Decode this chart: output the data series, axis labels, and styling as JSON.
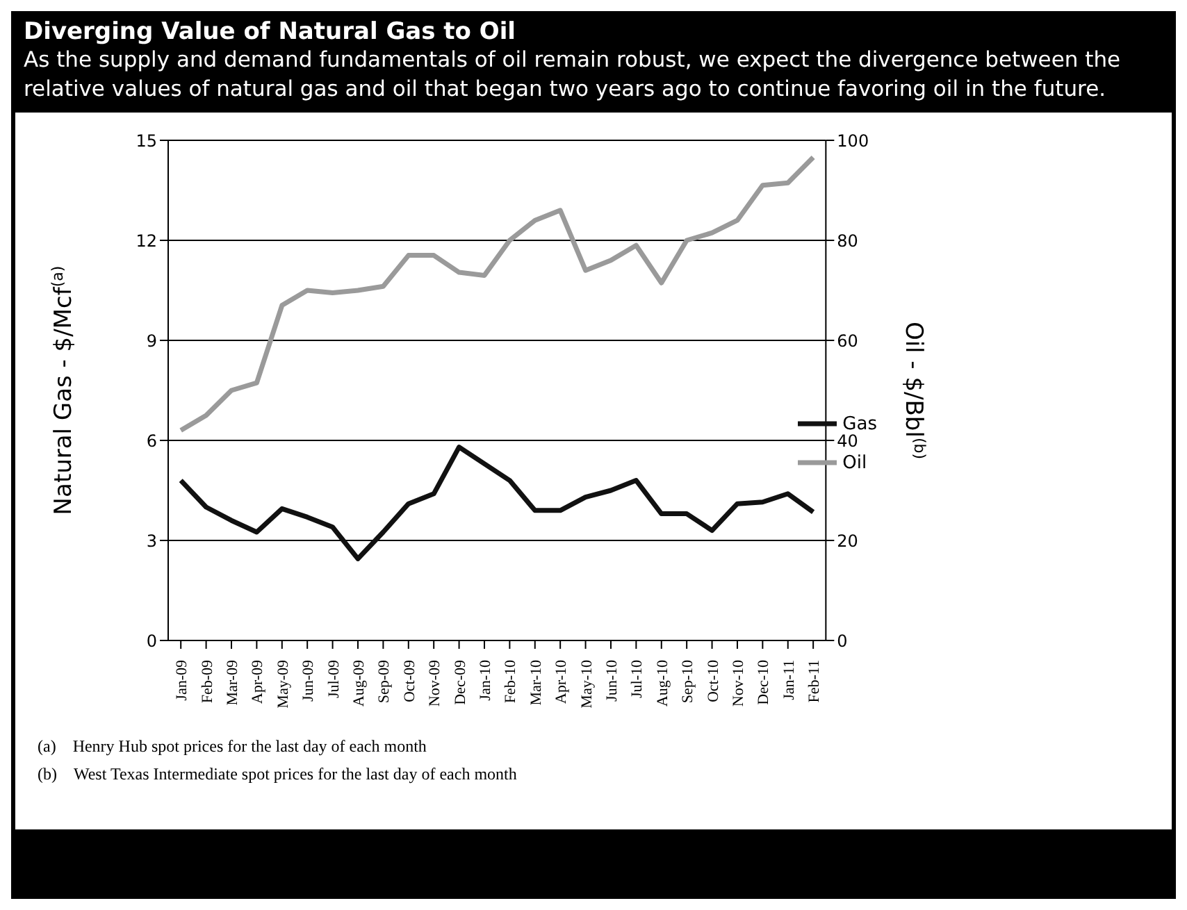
{
  "chart_data": {
    "type": "line",
    "title": "Diverging Value of Natural Gas to Oil",
    "subtitle": "As the supply and demand fundamentals of oil remain robust, we expect the divergence between the relative values of natural gas and oil that began two years ago to continue favoring oil in the future.",
    "categories": [
      "Jan-09",
      "Feb-09",
      "Mar-09",
      "Apr-09",
      "May-09",
      "Jun-09",
      "Jul-09",
      "Aug-09",
      "Sep-09",
      "Oct-09",
      "Nov-09",
      "Dec-09",
      "Jan-10",
      "Feb-10",
      "Mar-10",
      "Apr-10",
      "May-10",
      "Jun-10",
      "Jul-10",
      "Aug-10",
      "Sep-10",
      "Oct-10",
      "Nov-10",
      "Dec-10",
      "Jan-11",
      "Feb-11"
    ],
    "series": [
      {
        "name": "Oil",
        "color": "#9a9a9a",
        "axis": "y2",
        "values": [
          42,
          45,
          50,
          51.5,
          67,
          70,
          69.5,
          70,
          70.8,
          77,
          77,
          73.6,
          73,
          80,
          84,
          86,
          74,
          76,
          79,
          71.5,
          80,
          81.5,
          84,
          91,
          91.5,
          96.6
        ]
      },
      {
        "name": "Gas",
        "color": "#111111",
        "values": [
          4.8,
          4.0,
          3.6,
          3.25,
          3.95,
          3.7,
          3.4,
          2.45,
          3.25,
          4.1,
          4.4,
          5.8,
          5.3,
          4.8,
          3.9,
          3.9,
          4.3,
          4.5,
          4.8,
          3.8,
          3.8,
          3.3,
          4.1,
          4.15,
          4.4,
          3.85
        ]
      }
    ],
    "ylabel": "Natural Gas - $/Mcf$^{(a)}$",
    "y2label": "Oil - $/Bbl$^{(b)}$",
    "ylim": [
      0,
      15
    ],
    "yticks": [
      0,
      3,
      6,
      9,
      12,
      15
    ],
    "y2lim": [
      0,
      100
    ],
    "y2ticks": [
      0,
      20,
      40,
      60,
      80,
      100
    ],
    "grid": "y",
    "legend": "right",
    "marker": "none",
    "line_style": "solid",
    "annotations": [
      "(a) Henry Hub spot prices for the last day of each month",
      "(b) West Texas Intermediate spot prices for the last day of each month"
    ]
  }
}
